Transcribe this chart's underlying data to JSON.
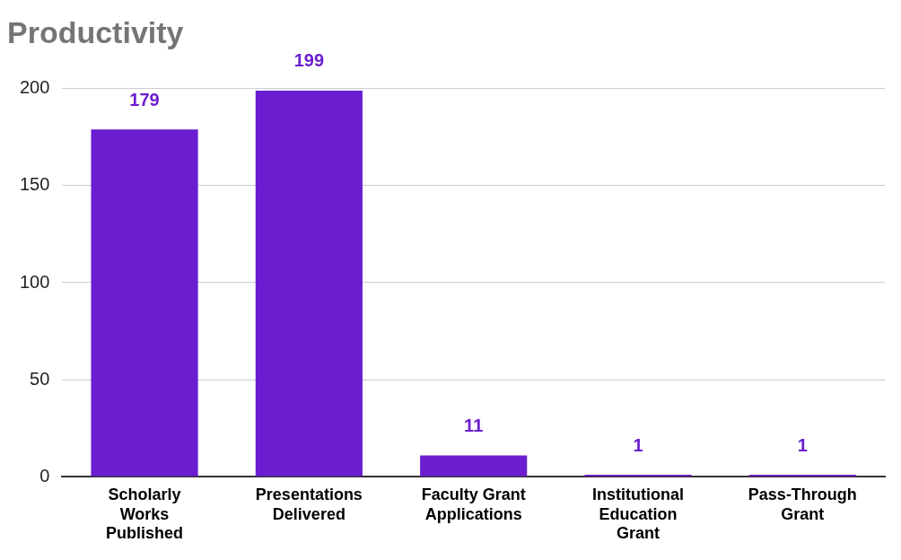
{
  "chart_data": {
    "type": "bar",
    "title": "Productivity",
    "categories": [
      "Scholarly Works Published",
      "Presentations Delivered",
      "Faculty Grant Applications",
      "Institutional Education Grant",
      "Pass-Through Grant"
    ],
    "values": [
      179,
      199,
      11,
      1,
      1
    ],
    "color": "#6a1ed0",
    "ylim": [
      0,
      200
    ],
    "yticks": [
      0,
      50,
      100,
      150,
      200
    ],
    "grid": "y",
    "data_labels": true,
    "legend": false
  }
}
